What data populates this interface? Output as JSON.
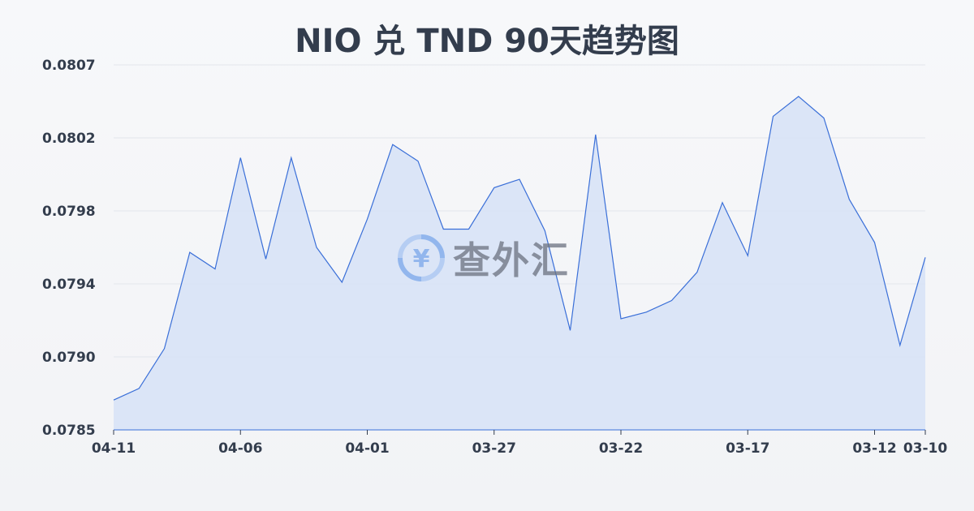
{
  "chart_data": {
    "type": "area",
    "title": "NIO 兑 TND 90天趋势图",
    "xlabel": "",
    "ylabel": "",
    "ylim": [
      0.0785,
      0.0807
    ],
    "y_ticks": [
      "0.0785",
      "0.0790",
      "0.0794",
      "0.0798",
      "0.0802",
      "0.0807"
    ],
    "x_ticks": [
      "04-11",
      "04-06",
      "04-01",
      "03-27",
      "03-22",
      "03-17",
      "03-12",
      "03-10"
    ],
    "grid": true,
    "colors": {
      "line": "#3a6fd8",
      "fill": "#d6e2f7"
    },
    "x": [
      "04-11",
      "04-10",
      "04-09",
      "04-08",
      "04-07",
      "04-06",
      "04-05",
      "04-04",
      "04-03",
      "04-02",
      "04-01",
      "03-31",
      "03-30",
      "03-29",
      "03-28",
      "03-27",
      "03-26",
      "03-25",
      "03-24",
      "03-23",
      "03-22",
      "03-21",
      "03-20",
      "03-19",
      "03-18",
      "03-17",
      "03-16",
      "03-15",
      "03-14",
      "03-13",
      "03-12",
      "03-11",
      "03-10"
    ],
    "values": [
      0.07868,
      0.07875,
      0.07899,
      0.07957,
      0.07947,
      0.08014,
      0.07953,
      0.08014,
      0.0796,
      0.07939,
      0.07977,
      0.08022,
      0.08012,
      0.07971,
      0.07971,
      0.07996,
      0.08001,
      0.0797,
      0.0791,
      0.08028,
      0.07917,
      0.07921,
      0.07928,
      0.07945,
      0.07987,
      0.07955,
      0.08039,
      0.08051,
      0.08038,
      0.07989,
      0.07963,
      0.07901,
      0.07954
    ]
  },
  "watermark": {
    "text": "查外汇",
    "icon": "yen-exchange-icon"
  }
}
